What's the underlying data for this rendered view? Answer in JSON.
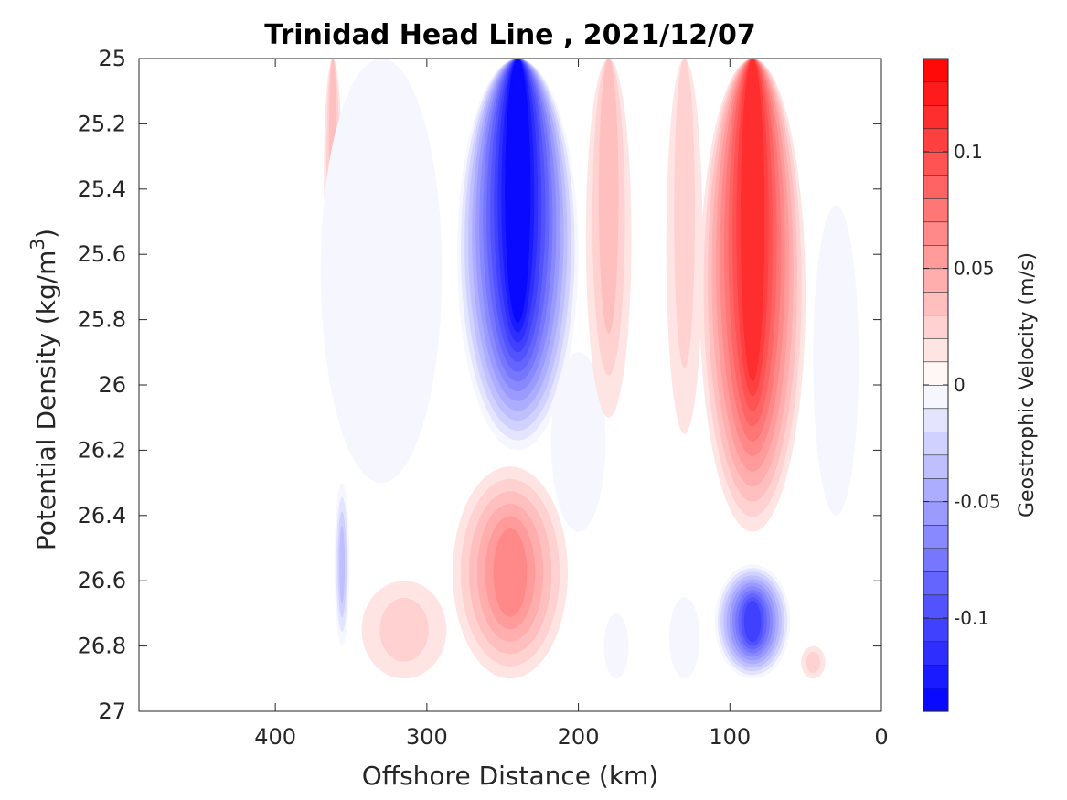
{
  "chart_data": {
    "type": "heatmap",
    "title": "Trinidad Head Line , 2021/12/07",
    "xlabel": "Offshore Distance (km)",
    "ylabel_prefix": "Potential Density (kg/m",
    "ylabel_sup": "3",
    "ylabel_suffix": ")",
    "colorbar_label": "Geostrophic Velocity (m/s)",
    "x_reversed": true,
    "y_reversed": true,
    "xlim": [
      0,
      490
    ],
    "ylim": [
      25,
      27
    ],
    "x_ticks": [
      400,
      300,
      200,
      100,
      0
    ],
    "x_tick_labels": [
      "400",
      "300",
      "200",
      "100",
      "0"
    ],
    "y_ticks": [
      25,
      25.2,
      25.4,
      25.6,
      25.8,
      26,
      26.2,
      26.4,
      26.6,
      26.8,
      27
    ],
    "y_tick_labels": [
      "25",
      "25.2",
      "25.4",
      "25.6",
      "25.8",
      "26",
      "26.2",
      "26.4",
      "26.6",
      "26.8",
      "27"
    ],
    "colorbar_range": [
      -0.14,
      0.14
    ],
    "colorbar_levels": 28,
    "colorbar_ticks": [
      0.1,
      0.05,
      0,
      -0.05,
      -0.1
    ],
    "colorbar_tick_labels": [
      "0.1",
      "0.05",
      "0",
      "-0.05",
      "-0.1"
    ],
    "colormap": {
      "negative": "#0000ff",
      "zero": "#ffffff",
      "positive": "#ff0000"
    },
    "features": [
      {
        "name": "narrow-positive-360",
        "x_center": 362,
        "x_halfwidth": 6,
        "y_top": 25.0,
        "y_bottom": 25.7,
        "peak": 0.03
      },
      {
        "name": "broad-negative-offshore",
        "x_center": 330,
        "x_halfwidth": 40,
        "y_top": 25.0,
        "y_bottom": 26.3,
        "peak": -0.012
      },
      {
        "name": "strong-negative-core",
        "x_center": 240,
        "x_halfwidth": 40,
        "y_top": 25.0,
        "y_bottom": 26.2,
        "peak": -0.14
      },
      {
        "name": "negative-tail-200",
        "x_center": 200,
        "x_halfwidth": 18,
        "y_top": 25.9,
        "y_bottom": 26.45,
        "peak": -0.012
      },
      {
        "name": "positive-band-180",
        "x_center": 180,
        "x_halfwidth": 15,
        "y_top": 25.0,
        "y_bottom": 26.1,
        "peak": 0.025
      },
      {
        "name": "positive-band-130",
        "x_center": 130,
        "x_halfwidth": 12,
        "y_top": 25.0,
        "y_bottom": 26.15,
        "peak": 0.02
      },
      {
        "name": "strong-positive-core",
        "x_center": 85,
        "x_halfwidth": 35,
        "y_top": 25.0,
        "y_bottom": 26.45,
        "peak": 0.11
      },
      {
        "name": "negative-band-nearshore",
        "x_center": 30,
        "x_halfwidth": 15,
        "y_top": 25.45,
        "y_bottom": 26.4,
        "peak": -0.01
      },
      {
        "name": "positive-deep-core",
        "x_center": 245,
        "x_halfwidth": 38,
        "y_top": 26.25,
        "y_bottom": 26.9,
        "peak": 0.06
      },
      {
        "name": "positive-deep-west",
        "x_center": 315,
        "x_halfwidth": 28,
        "y_top": 26.6,
        "y_bottom": 26.9,
        "peak": 0.02
      },
      {
        "name": "negative-deep-360",
        "x_center": 356,
        "x_halfwidth": 5,
        "y_top": 26.3,
        "y_bottom": 26.8,
        "peak": -0.04
      },
      {
        "name": "negative-deep-core",
        "x_center": 85,
        "x_halfwidth": 25,
        "y_top": 26.55,
        "y_bottom": 26.9,
        "peak": -0.11
      },
      {
        "name": "negative-deep-180",
        "x_center": 175,
        "x_halfwidth": 8,
        "y_top": 26.7,
        "y_bottom": 26.9,
        "peak": -0.01
      },
      {
        "name": "negative-deep-130",
        "x_center": 130,
        "x_halfwidth": 10,
        "y_top": 26.65,
        "y_bottom": 26.9,
        "peak": -0.01
      },
      {
        "name": "positive-deep-nearshore",
        "x_center": 45,
        "x_halfwidth": 8,
        "y_top": 26.8,
        "y_bottom": 26.9,
        "peak": 0.015
      }
    ]
  }
}
